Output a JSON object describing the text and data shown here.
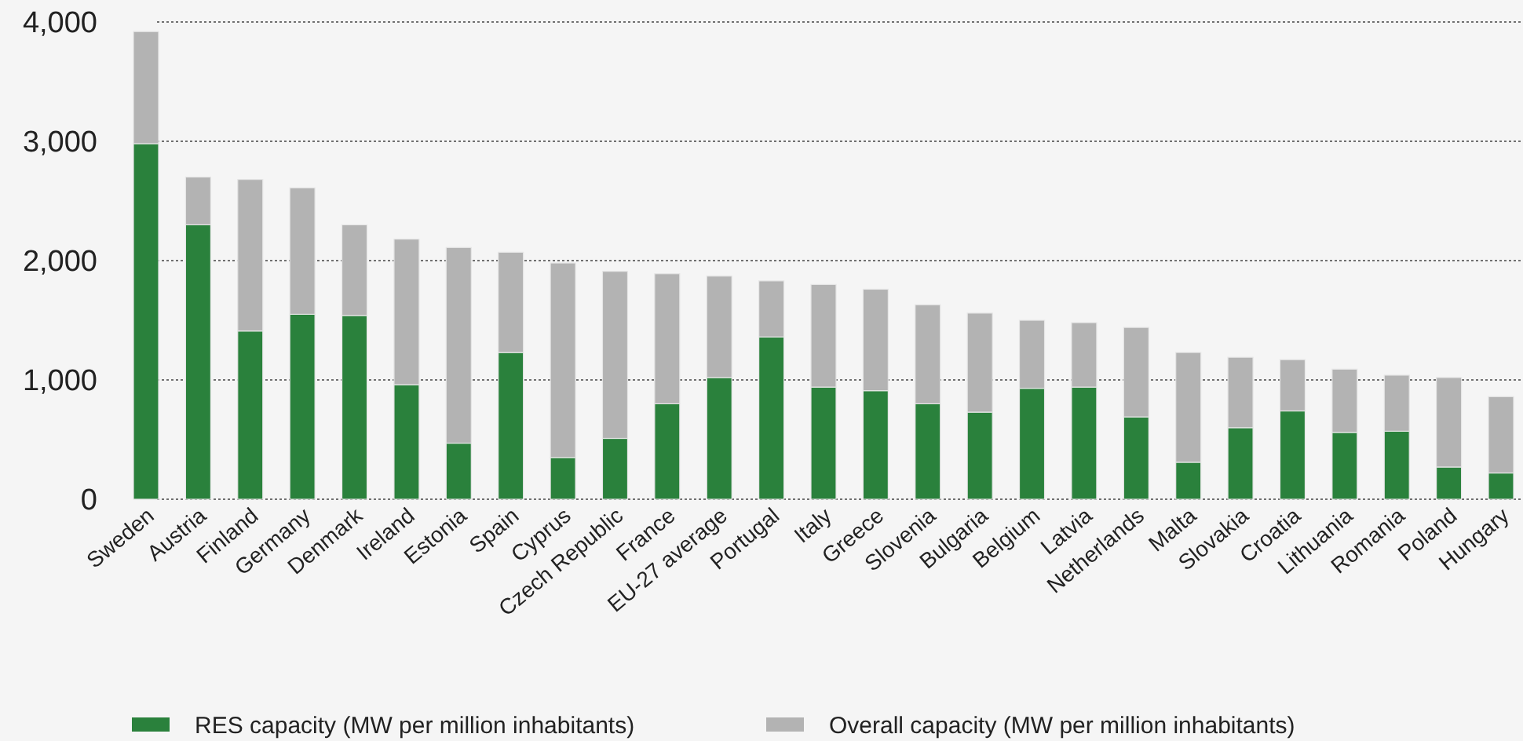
{
  "chart_data": {
    "type": "bar",
    "stacked": true,
    "categories": [
      "Sweden",
      "Austria",
      "Finland",
      "Germany",
      "Denmark",
      "Ireland",
      "Estonia",
      "Spain",
      "Cyprus",
      "Czech Republic",
      "France",
      "EU-27 average",
      "Portugal",
      "Italy",
      "Greece",
      "Slovenia",
      "Bulgaria",
      "Belgium",
      "Latvia",
      "Netherlands",
      "Malta",
      "Slovakia",
      "Croatia",
      "Lithuania",
      "Romania",
      "Poland",
      "Hungary"
    ],
    "series": [
      {
        "name": "RES capacity (MW per million inhabitants)",
        "color": "#2a813c",
        "values": [
          2980,
          2300,
          1410,
          1550,
          1540,
          960,
          470,
          1230,
          350,
          510,
          800,
          1020,
          1360,
          940,
          910,
          800,
          730,
          930,
          940,
          690,
          310,
          600,
          740,
          560,
          570,
          270,
          220
        ]
      },
      {
        "name": "Overall capacity (MW per million inhabitants)",
        "color": "#b3b3b3",
        "values": [
          940,
          400,
          1270,
          1060,
          760,
          1220,
          1640,
          840,
          1630,
          1400,
          1090,
          850,
          470,
          860,
          850,
          830,
          830,
          570,
          540,
          750,
          920,
          590,
          430,
          530,
          470,
          750,
          640
        ]
      }
    ],
    "ylim": [
      0,
      4000
    ],
    "yticks": [
      {
        "value": 0,
        "label": "0"
      },
      {
        "value": 1000,
        "label": "1,000"
      },
      {
        "value": 2000,
        "label": "2,000"
      },
      {
        "value": 3000,
        "label": "3,000"
      },
      {
        "value": 4000,
        "label": "4,000"
      }
    ],
    "grid": "y",
    "legend": "bottom"
  }
}
